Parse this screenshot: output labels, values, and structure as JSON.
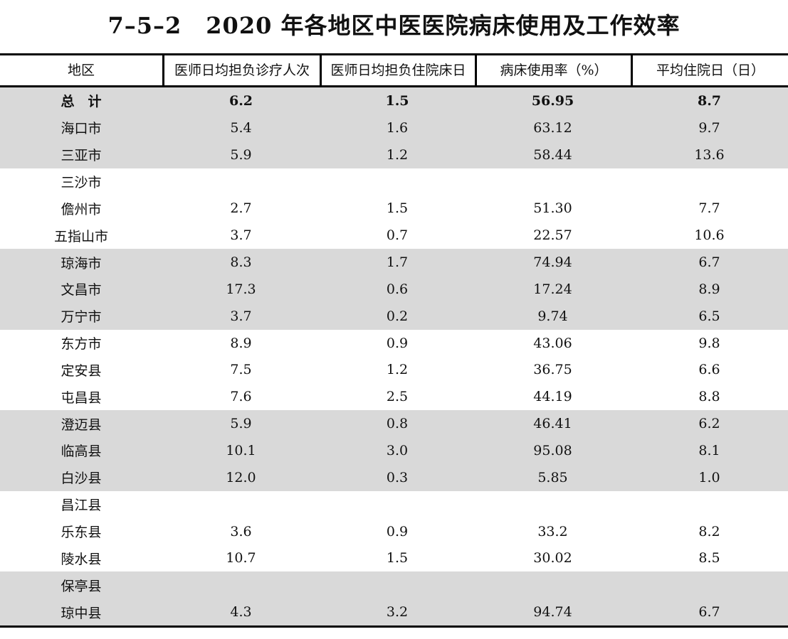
{
  "title": {
    "number": "7–5–2",
    "text": "2020 年各地区中医医院病床使用及工作效率"
  },
  "table": {
    "columns": [
      "地区",
      "医师日均担负诊疗人次",
      "医师日均担负住院床日",
      "病床使用率（%）",
      "平均住院日（日）"
    ],
    "rows": [
      {
        "region": "总　计",
        "visits": "6.2",
        "bed_days": "1.5",
        "usage": "56.95",
        "stay": "8.7"
      },
      {
        "region": "海口市",
        "visits": "5.4",
        "bed_days": "1.6",
        "usage": "63.12",
        "stay": "9.7"
      },
      {
        "region": "三亚市",
        "visits": "5.9",
        "bed_days": "1.2",
        "usage": "58.44",
        "stay": "13.6"
      },
      {
        "region": "三沙市",
        "visits": "",
        "bed_days": "",
        "usage": "",
        "stay": ""
      },
      {
        "region": "儋州市",
        "visits": "2.7",
        "bed_days": "1.5",
        "usage": "51.30",
        "stay": "7.7"
      },
      {
        "region": "五指山市",
        "visits": "3.7",
        "bed_days": "0.7",
        "usage": "22.57",
        "stay": "10.6"
      },
      {
        "region": "琼海市",
        "visits": "8.3",
        "bed_days": "1.7",
        "usage": "74.94",
        "stay": "6.7"
      },
      {
        "region": "文昌市",
        "visits": "17.3",
        "bed_days": "0.6",
        "usage": "17.24",
        "stay": "8.9"
      },
      {
        "region": "万宁市",
        "visits": "3.7",
        "bed_days": "0.2",
        "usage": "9.74",
        "stay": "6.5"
      },
      {
        "region": "东方市",
        "visits": "8.9",
        "bed_days": "0.9",
        "usage": "43.06",
        "stay": "9.8"
      },
      {
        "region": "定安县",
        "visits": "7.5",
        "bed_days": "1.2",
        "usage": "36.75",
        "stay": "6.6"
      },
      {
        "region": "屯昌县",
        "visits": "7.6",
        "bed_days": "2.5",
        "usage": "44.19",
        "stay": "8.8"
      },
      {
        "region": "澄迈县",
        "visits": "5.9",
        "bed_days": "0.8",
        "usage": "46.41",
        "stay": "6.2"
      },
      {
        "region": "临高县",
        "visits": "10.1",
        "bed_days": "3.0",
        "usage": "95.08",
        "stay": "8.1"
      },
      {
        "region": "白沙县",
        "visits": "12.0",
        "bed_days": "0.3",
        "usage": "5.85",
        "stay": "1.0"
      },
      {
        "region": "昌江县",
        "visits": "",
        "bed_days": "",
        "usage": "",
        "stay": ""
      },
      {
        "region": "乐东县",
        "visits": "3.6",
        "bed_days": "0.9",
        "usage": "33.2",
        "stay": "8.2"
      },
      {
        "region": "陵水县",
        "visits": "10.7",
        "bed_days": "1.5",
        "usage": "30.02",
        "stay": "8.5"
      },
      {
        "region": "保亭县",
        "visits": "",
        "bed_days": "",
        "usage": "",
        "stay": ""
      },
      {
        "region": "琼中县",
        "visits": "4.3",
        "bed_days": "3.2",
        "usage": "94.74",
        "stay": "6.7"
      }
    ]
  },
  "colors": {
    "band_shade": "#d9d9d9",
    "rule": "#000000",
    "text": "#111111"
  }
}
